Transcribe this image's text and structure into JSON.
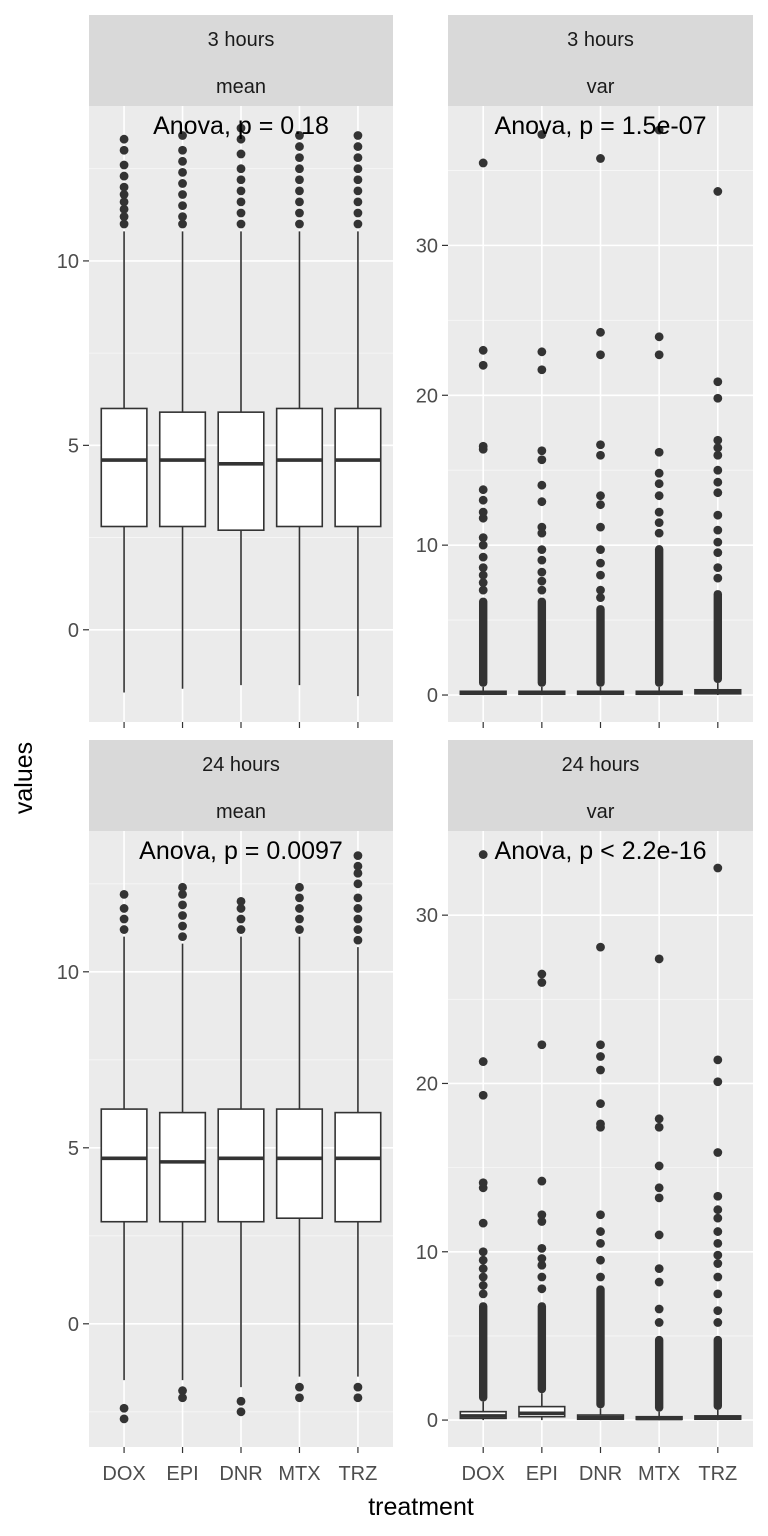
{
  "colors": {
    "panel_bg": "#ebebeb",
    "strip_bg": "#d9d9d9",
    "grid_major": "#ffffff",
    "box_fill": "#ffffff",
    "box_line": "#333333",
    "outlier": "#333333",
    "tick_label": "#4d4d4d"
  },
  "chart_data": {
    "type": "boxplot",
    "xlabel": "treatment",
    "ylabel": "values",
    "categories": [
      "DOX",
      "EPI",
      "DNR",
      "MTX",
      "TRZ"
    ],
    "panels": [
      {
        "id": "p3mean",
        "strip": [
          "3 hours",
          "mean"
        ],
        "annotation": "Anova, p = 0.18",
        "ylim": [
          -2.5,
          14.2
        ],
        "yticks": [
          0,
          5,
          10
        ],
        "ytick_labels": [
          "0",
          "5",
          "10"
        ],
        "boxes": [
          {
            "min": -1.7,
            "q1": 2.8,
            "median": 4.6,
            "q3": 6.0,
            "max": 10.8,
            "outliers": [
              11.0,
              11.2,
              11.4,
              11.6,
              11.8,
              12.0,
              12.3,
              12.6,
              13.0,
              13.3
            ]
          },
          {
            "min": -1.6,
            "q1": 2.8,
            "median": 4.6,
            "q3": 5.9,
            "max": 10.8,
            "outliers": [
              11.0,
              11.2,
              11.5,
              11.8,
              12.1,
              12.4,
              12.7,
              13.0,
              13.4
            ]
          },
          {
            "min": -1.5,
            "q1": 2.7,
            "median": 4.5,
            "q3": 5.9,
            "max": 10.8,
            "outliers": [
              11.0,
              11.3,
              11.6,
              11.9,
              12.2,
              12.5,
              12.9,
              13.3,
              13.6
            ]
          },
          {
            "min": -1.5,
            "q1": 2.8,
            "median": 4.6,
            "q3": 6.0,
            "max": 10.8,
            "outliers": [
              11.0,
              11.3,
              11.6,
              11.9,
              12.2,
              12.5,
              12.8,
              13.1,
              13.4
            ]
          },
          {
            "min": -1.8,
            "q1": 2.8,
            "median": 4.6,
            "q3": 6.0,
            "max": 10.8,
            "outliers": [
              11.0,
              11.3,
              11.6,
              11.9,
              12.2,
              12.5,
              12.8,
              13.1,
              13.4
            ]
          }
        ]
      },
      {
        "id": "p3var",
        "strip": [
          "3 hours",
          "var"
        ],
        "annotation": "Anova, p = 1.5e-07",
        "ylim": [
          -1.8,
          39.3
        ],
        "yticks": [
          0,
          10,
          20,
          30
        ],
        "ytick_labels": [
          "0",
          "10",
          "20",
          "30"
        ],
        "boxes": [
          {
            "min": 0.0,
            "q1": 0.05,
            "median": 0.12,
            "q3": 0.25,
            "max": 0.55,
            "dense_max": 6.5,
            "outliers": [
              7.0,
              7.5,
              8.0,
              8.5,
              9.2,
              10.0,
              10.5,
              11.8,
              12.2,
              13.0,
              13.7,
              16.4,
              16.6,
              22.0,
              23.0,
              35.5
            ]
          },
          {
            "min": 0.0,
            "q1": 0.05,
            "median": 0.12,
            "q3": 0.25,
            "max": 0.55,
            "dense_max": 6.5,
            "outliers": [
              7.0,
              7.6,
              8.2,
              9.0,
              9.7,
              10.8,
              11.2,
              12.9,
              14.0,
              15.7,
              16.3,
              21.7,
              22.9,
              37.4
            ]
          },
          {
            "min": 0.0,
            "q1": 0.05,
            "median": 0.12,
            "q3": 0.25,
            "max": 0.55,
            "dense_max": 6.0,
            "outliers": [
              6.5,
              7.0,
              8.0,
              8.8,
              9.7,
              11.2,
              12.7,
              13.3,
              16.0,
              16.7,
              22.7,
              24.2,
              35.8
            ]
          },
          {
            "min": 0.0,
            "q1": 0.05,
            "median": 0.12,
            "q3": 0.25,
            "max": 0.55,
            "dense_max": 10.0,
            "outliers": [
              10.8,
              11.5,
              12.2,
              13.3,
              14.1,
              14.8,
              16.2,
              22.7,
              23.9,
              37.7
            ]
          },
          {
            "min": 0.0,
            "q1": 0.08,
            "median": 0.18,
            "q3": 0.35,
            "max": 0.8,
            "dense_max": 7.0,
            "outliers": [
              7.8,
              8.5,
              9.5,
              10.2,
              11.0,
              12.0,
              13.5,
              14.2,
              15.0,
              16.0,
              16.5,
              17.0,
              19.8,
              20.9,
              33.6
            ]
          }
        ]
      },
      {
        "id": "p24mean",
        "strip": [
          "24 hours",
          "mean"
        ],
        "annotation": "Anova, p = 0.0097",
        "ylim": [
          -3.5,
          14.0
        ],
        "yticks": [
          0,
          5,
          10
        ],
        "ytick_labels": [
          "0",
          "5",
          "10"
        ],
        "boxes": [
          {
            "min": -1.6,
            "q1": 2.9,
            "median": 4.7,
            "q3": 6.1,
            "max": 11.0,
            "outliers": [
              -2.4,
              -2.7,
              11.2,
              11.5,
              11.8,
              12.2
            ]
          },
          {
            "min": -1.6,
            "q1": 2.9,
            "median": 4.6,
            "q3": 6.0,
            "max": 10.8,
            "outliers": [
              -1.9,
              -2.1,
              11.0,
              11.3,
              11.6,
              11.9,
              12.2,
              12.4
            ]
          },
          {
            "min": -1.8,
            "q1": 2.9,
            "median": 4.7,
            "q3": 6.1,
            "max": 11.0,
            "outliers": [
              -2.2,
              -2.5,
              11.2,
              11.5,
              11.8,
              12.0
            ]
          },
          {
            "min": -1.5,
            "q1": 3.0,
            "median": 4.7,
            "q3": 6.1,
            "max": 11.0,
            "outliers": [
              -1.8,
              -2.1,
              11.2,
              11.5,
              11.8,
              12.1,
              12.4
            ]
          },
          {
            "min": -1.5,
            "q1": 2.9,
            "median": 4.7,
            "q3": 6.0,
            "max": 10.7,
            "outliers": [
              -1.8,
              -2.1,
              10.9,
              11.2,
              11.5,
              11.8,
              12.1,
              12.5,
              12.8,
              13.0,
              13.3
            ]
          }
        ]
      },
      {
        "id": "p24var",
        "strip": [
          "24 hours",
          "var"
        ],
        "annotation": "Anova, p < 2.2e-16",
        "ylim": [
          -1.6,
          35.0
        ],
        "yticks": [
          0,
          10,
          20,
          30
        ],
        "ytick_labels": [
          "0",
          "10",
          "20",
          "30"
        ],
        "boxes": [
          {
            "min": 0.0,
            "q1": 0.1,
            "median": 0.25,
            "q3": 0.5,
            "max": 1.1,
            "dense_max": 7.0,
            "outliers": [
              7.5,
              8.0,
              8.5,
              9.0,
              9.5,
              10.0,
              11.7,
              13.8,
              14.1,
              19.3,
              21.3,
              33.6
            ]
          },
          {
            "min": 0.0,
            "q1": 0.2,
            "median": 0.4,
            "q3": 0.8,
            "max": 1.6,
            "dense_max": 7.0,
            "outliers": [
              7.8,
              8.5,
              9.2,
              9.6,
              10.2,
              11.8,
              12.2,
              14.2,
              22.3,
              26.0,
              26.5
            ]
          },
          {
            "min": 0.0,
            "q1": 0.05,
            "median": 0.15,
            "q3": 0.3,
            "max": 0.7,
            "dense_max": 8.0,
            "outliers": [
              8.5,
              9.5,
              10.5,
              11.2,
              12.2,
              17.4,
              17.6,
              18.8,
              20.8,
              21.6,
              22.3,
              28.1
            ]
          },
          {
            "min": 0.0,
            "q1": 0.04,
            "median": 0.1,
            "q3": 0.2,
            "max": 0.5,
            "dense_max": 5.0,
            "outliers": [
              5.8,
              6.6,
              8.2,
              9.0,
              11.0,
              13.2,
              13.8,
              15.1,
              17.4,
              17.9,
              27.4
            ]
          },
          {
            "min": 0.0,
            "q1": 0.05,
            "median": 0.12,
            "q3": 0.25,
            "max": 0.6,
            "dense_max": 5.0,
            "outliers": [
              5.8,
              6.5,
              7.5,
              8.5,
              9.3,
              9.8,
              10.5,
              11.2,
              12.0,
              12.5,
              13.3,
              15.9,
              20.1,
              21.4,
              32.8
            ]
          }
        ]
      }
    ]
  }
}
